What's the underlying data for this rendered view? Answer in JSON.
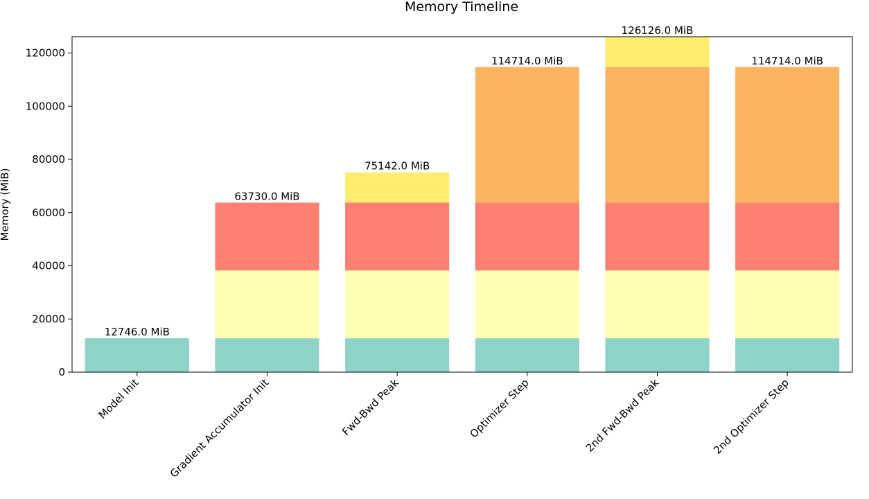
{
  "chart_data": {
    "type": "bar",
    "stacked": true,
    "title": "Memory Timeline",
    "xlabel": "",
    "ylabel": "Memory (MiB)",
    "ylim": [
      0,
      126126
    ],
    "yticks": [
      0,
      20000,
      40000,
      60000,
      80000,
      100000,
      120000
    ],
    "categories": [
      "Model Init",
      "Gradient Accumulator Init",
      "Fwd-Bwd Peak",
      "Optimizer Step",
      "2nd Fwd-Bwd Peak",
      "2nd Optimizer Step"
    ],
    "series": [
      {
        "name": "segment-1",
        "color": "#8dd3c7",
        "values": [
          12746,
          12746,
          12746,
          12746,
          12746,
          12746
        ]
      },
      {
        "name": "segment-2",
        "color": "#ffffb3",
        "values": [
          0,
          25492,
          25492,
          25492,
          25492,
          25492
        ]
      },
      {
        "name": "segment-3",
        "color": "#fb8072",
        "values": [
          0,
          25492,
          25492,
          25492,
          25492,
          25492
        ]
      },
      {
        "name": "segment-4",
        "color": "#fdb462",
        "values": [
          0,
          0,
          0,
          50984,
          50984,
          50984
        ]
      },
      {
        "name": "segment-5",
        "color": "#ffed6f",
        "values": [
          0,
          0,
          11412,
          0,
          11412,
          0
        ]
      }
    ],
    "totals": [
      12746,
      63730,
      75142,
      114714,
      126126,
      114714
    ],
    "total_labels": [
      "12746.0 MiB",
      "63730.0 MiB",
      "75142.0 MiB",
      "114714.0 MiB",
      "126126.0 MiB",
      "114714.0 MiB"
    ],
    "grid": false,
    "legend": "none"
  }
}
